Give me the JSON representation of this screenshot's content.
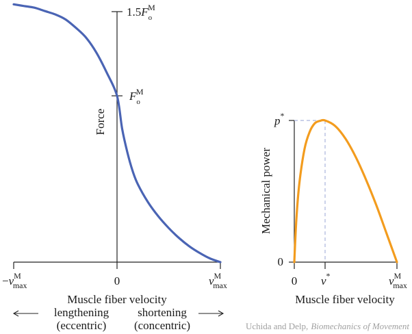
{
  "chart_data": [
    {
      "type": "line",
      "title": "",
      "xlabel": "Muscle fiber velocity",
      "ylabel": "Force",
      "x_ticks": {
        "neg_max": {
          "sign": "−",
          "main": "v",
          "sup": "M",
          "sub": "max"
        },
        "zero": "0",
        "pos_max": {
          "main": "v",
          "sup": "M",
          "sub": "max"
        }
      },
      "y_ticks": {
        "iso": {
          "main": "F",
          "sup": "M",
          "sub": "o"
        },
        "ecc": {
          "prefix": "1.5",
          "main": "F",
          "sup": "M",
          "sub": "o"
        }
      },
      "direction_labels": {
        "left": [
          "lengthening",
          "(eccentric)"
        ],
        "right": [
          "shortening",
          "(concentric)"
        ]
      },
      "color": "#4a64b4",
      "xlim": [
        -1,
        1
      ],
      "ylim": [
        0,
        1.6
      ],
      "x": [
        -1.0,
        -0.9,
        -0.8,
        -0.7,
        -0.6,
        -0.5,
        -0.4,
        -0.3,
        -0.2,
        -0.1,
        0.0,
        0.05,
        0.1,
        0.15,
        0.2,
        0.3,
        0.4,
        0.5,
        0.6,
        0.7,
        0.8,
        0.9,
        1.0
      ],
      "y": [
        1.55,
        1.54,
        1.53,
        1.51,
        1.49,
        1.46,
        1.41,
        1.35,
        1.26,
        1.14,
        1.0,
        0.8,
        0.66,
        0.55,
        0.47,
        0.36,
        0.275,
        0.205,
        0.145,
        0.095,
        0.055,
        0.022,
        0.0
      ]
    },
    {
      "type": "line",
      "title": "",
      "xlabel": "Muscle fiber velocity",
      "ylabel": "Mechanical power",
      "x_ticks": {
        "zero": "0",
        "v_star": {
          "main": "v",
          "sup": "*"
        },
        "pos_max": {
          "main": "v",
          "sup": "M",
          "sub": "max"
        }
      },
      "y_ticks": {
        "zero": "0",
        "p_star": {
          "main": "p",
          "sup": "*"
        }
      },
      "color": "#f39c1e",
      "dash_color": "#a9b3dc",
      "xlim": [
        0,
        1
      ],
      "ylim": [
        0,
        1
      ],
      "peak": {
        "x": 0.3,
        "y": 1.0
      },
      "x": [
        0.0,
        0.02,
        0.05,
        0.1,
        0.15,
        0.2,
        0.25,
        0.3,
        0.4,
        0.5,
        0.6,
        0.7,
        0.8,
        0.9,
        1.0
      ],
      "y": [
        0.0,
        0.3,
        0.56,
        0.8,
        0.92,
        0.98,
        0.997,
        1.0,
        0.96,
        0.87,
        0.74,
        0.58,
        0.4,
        0.2,
        0.0
      ]
    }
  ],
  "credit": {
    "authors": "Uchida and Delp,",
    "book": "Biomechanics of Movement"
  }
}
